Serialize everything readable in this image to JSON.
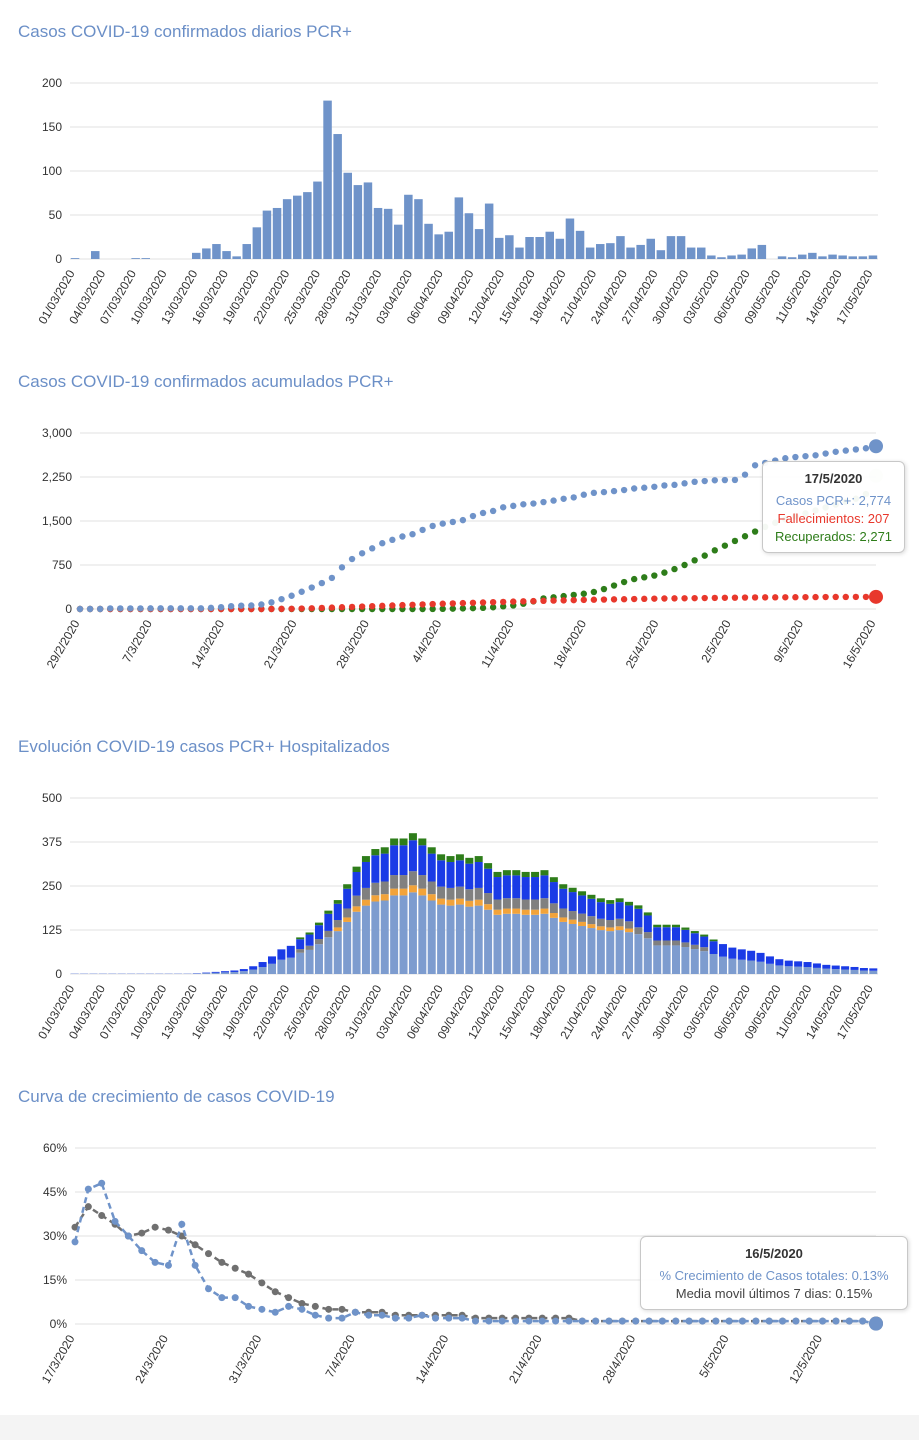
{
  "chart_data": [
    {
      "type": "bar",
      "title": "Casos COVID-19 confirmados diarios  PCR+",
      "xlabel": "",
      "ylabel": "",
      "ylim": [
        0,
        200
      ],
      "yticks": [
        "0",
        "50",
        "100",
        "150",
        "200"
      ],
      "color": "#6f93c9",
      "tick_labels": [
        "01/03/2020",
        "04/03/2020",
        "07/03/2020",
        "10/03/2020",
        "13/03/2020",
        "16/03/2020",
        "19/03/2020",
        "22/03/2020",
        "25/03/2020",
        "28/03/2020",
        "31/03/2020",
        "03/04/2020",
        "06/04/2020",
        "09/04/2020",
        "12/04/2020",
        "15/04/2020",
        "18/04/2020",
        "21/04/2020",
        "24/04/2020",
        "27/04/2020",
        "30/04/2020",
        "03/05/2020",
        "06/05/2020",
        "09/05/2020",
        "11/05/2020",
        "14/05/2020",
        "17/05/2020"
      ],
      "values": [
        1,
        0,
        9,
        0,
        0,
        0,
        1,
        1,
        0,
        0,
        0,
        0,
        7,
        12,
        17,
        9,
        3,
        17,
        36,
        55,
        58,
        68,
        72,
        76,
        88,
        180,
        142,
        98,
        84,
        87,
        58,
        57,
        39,
        73,
        68,
        40,
        28,
        31,
        70,
        52,
        34,
        63,
        24,
        27,
        13,
        25,
        25,
        31,
        23,
        46,
        32,
        13,
        17,
        18,
        26,
        13,
        16,
        23,
        10,
        26,
        26,
        13,
        13,
        4,
        2,
        4,
        5,
        12,
        16,
        0,
        3,
        2,
        5,
        7,
        3,
        5,
        4,
        3,
        3,
        4
      ]
    },
    {
      "type": "line",
      "title": "Casos COVID-19 confirmados acumulados PCR+",
      "xlabel": "",
      "ylabel": "",
      "ylim": [
        0,
        3000
      ],
      "yticks": [
        "0",
        "750",
        "1,500",
        "2,250",
        "3,000"
      ],
      "tick_labels": [
        "29/2/2020",
        "7/3/2020",
        "14/3/2020",
        "21/3/2020",
        "28/3/2020",
        "4/4/2020",
        "11/4/2020",
        "18/4/2020",
        "25/4/2020",
        "2/5/2020",
        "9/5/2020",
        "16/5/2020"
      ],
      "series": [
        {
          "name": "Casos PCR+",
          "color": "#6f93c9",
          "values": [
            0,
            1,
            1,
            10,
            10,
            10,
            10,
            11,
            12,
            12,
            12,
            12,
            12,
            19,
            31,
            48,
            57,
            60,
            77,
            113,
            168,
            226,
            294,
            366,
            442,
            530,
            710,
            852,
            950,
            1034,
            1121,
            1179,
            1236,
            1275,
            1348,
            1416,
            1456,
            1484,
            1515,
            1585,
            1637,
            1671,
            1734,
            1758,
            1785,
            1798,
            1823,
            1848,
            1879,
            1902,
            1948,
            1980,
            1993,
            2010,
            2028,
            2054,
            2067,
            2083,
            2106,
            2116,
            2142,
            2168,
            2181,
            2194,
            2198,
            2200,
            2290,
            2450,
            2490,
            2530,
            2570,
            2590,
            2605,
            2620,
            2650,
            2680,
            2700,
            2720,
            2740,
            2774
          ]
        },
        {
          "name": "Fallecimientos",
          "color": "#e8382c",
          "values": [
            0,
            0,
            0,
            0,
            0,
            0,
            0,
            0,
            0,
            0,
            0,
            0,
            0,
            0,
            0,
            0,
            0,
            0,
            0,
            1,
            2,
            4,
            8,
            12,
            18,
            24,
            30,
            36,
            42,
            48,
            54,
            60,
            66,
            72,
            78,
            84,
            90,
            95,
            100,
            106,
            111,
            116,
            121,
            126,
            131,
            135,
            139,
            143,
            147,
            151,
            155,
            158,
            161,
            164,
            167,
            170,
            173,
            176,
            179,
            181,
            183,
            185,
            187,
            189,
            191,
            193,
            195,
            197,
            198,
            199,
            200,
            201,
            202,
            203,
            204,
            205,
            205,
            206,
            206,
            207
          ]
        },
        {
          "name": "Recuperados",
          "color": "#2e7d1a",
          "values": [
            0,
            0,
            0,
            0,
            0,
            0,
            0,
            0,
            0,
            0,
            0,
            0,
            0,
            0,
            0,
            0,
            0,
            0,
            0,
            0,
            0,
            0,
            0,
            0,
            0,
            0,
            0,
            0,
            0,
            0,
            0,
            0,
            0,
            0,
            0,
            1,
            3,
            6,
            10,
            15,
            20,
            30,
            45,
            60,
            90,
            130,
            180,
            200,
            220,
            240,
            260,
            290,
            340,
            400,
            460,
            510,
            540,
            570,
            620,
            680,
            750,
            830,
            910,
            1000,
            1080,
            1160,
            1240,
            1320,
            1400,
            1470,
            1530,
            1580,
            1630,
            1680,
            1730,
            1780,
            1830,
            1880,
            1960,
            2271
          ]
        }
      ],
      "tooltip": {
        "date": "17/5/2020",
        "lines": [
          {
            "text": "Casos PCR+: 2,774",
            "color": "#6f93c9"
          },
          {
            "text": "Fallecimientos: 207",
            "color": "#e8382c"
          },
          {
            "text": "Recuperados: 2,271",
            "color": "#2e7d1a"
          }
        ]
      }
    },
    {
      "type": "bar",
      "stacked": true,
      "title": "Evolución COVID-19 casos PCR+ Hospitalizados",
      "xlabel": "",
      "ylabel": "",
      "ylim": [
        0,
        500
      ],
      "yticks": [
        "0",
        "125",
        "250",
        "375",
        "500"
      ],
      "tick_labels": [
        "01/03/2020",
        "04/03/2020",
        "07/03/2020",
        "10/03/2020",
        "13/03/2020",
        "16/03/2020",
        "19/03/2020",
        "22/03/2020",
        "25/03/2020",
        "28/03/2020",
        "31/03/2020",
        "03/04/2020",
        "06/04/2020",
        "09/04/2020",
        "12/04/2020",
        "15/04/2020",
        "18/04/2020",
        "21/04/2020",
        "24/04/2020",
        "27/04/2020",
        "30/04/2020",
        "03/05/2020",
        "06/05/2020",
        "09/05/2020",
        "11/05/2020",
        "14/05/2020",
        "17/05/2020"
      ],
      "colors": [
        "#7d9ccf",
        "#f2a33a",
        "#808080",
        "#1a3be6",
        "#2e7d1a"
      ],
      "totals": [
        1,
        1,
        1,
        1,
        1,
        1,
        1,
        1,
        1,
        1,
        1,
        1,
        1,
        2,
        4,
        6,
        8,
        10,
        14,
        22,
        34,
        50,
        70,
        80,
        104,
        118,
        146,
        180,
        210,
        255,
        305,
        335,
        355,
        360,
        385,
        385,
        400,
        385,
        360,
        340,
        335,
        340,
        330,
        335,
        315,
        290,
        295,
        295,
        290,
        290,
        295,
        275,
        255,
        245,
        235,
        225,
        215,
        210,
        215,
        205,
        195,
        175,
        140,
        140,
        140,
        132,
        122,
        112,
        98,
        85,
        75,
        70,
        66,
        60,
        50,
        42,
        38,
        36,
        34,
        30,
        26,
        24,
        22,
        20,
        17,
        16
      ]
    }
  ],
  "growth_chart": {
    "type": "line",
    "title": "Curva de crecimiento de casos COVID-19",
    "xlabel": "",
    "ylabel": "",
    "ylim": [
      0,
      60
    ],
    "yticks": [
      "0%",
      "15%",
      "30%",
      "45%",
      "60%"
    ],
    "tick_labels": [
      "17/3/2020",
      "24/3/2020",
      "31/3/2020",
      "7/4/2020",
      "14/4/2020",
      "21/4/2020",
      "28/4/2020",
      "5/5/2020",
      "12/5/2020"
    ],
    "series": [
      {
        "name": "% Crecimiento de Casos totales",
        "color": "#6f93c9",
        "values": [
          28,
          46,
          48,
          35,
          30,
          25,
          21,
          20,
          34,
          20,
          12,
          9,
          9,
          6,
          5,
          4,
          6,
          5,
          3,
          2,
          2,
          4,
          3,
          3,
          2,
          2,
          3,
          2,
          2,
          2,
          1,
          1,
          1,
          1,
          1,
          1,
          1,
          1,
          1,
          1,
          1,
          1,
          1,
          1,
          1,
          1,
          1,
          1,
          1,
          1,
          1,
          1,
          1,
          1,
          1,
          1,
          1,
          1,
          1,
          1,
          0.13
        ]
      },
      {
        "name": "Media movil últimos 7 dias",
        "color": "#707070",
        "values": [
          33,
          40,
          37,
          34,
          30,
          31,
          33,
          32,
          30,
          27,
          24,
          21,
          19,
          17,
          14,
          11,
          9,
          7,
          6,
          5,
          5,
          4,
          4,
          4,
          3,
          3,
          3,
          3,
          3,
          3,
          2,
          2,
          2,
          2,
          2,
          2,
          2,
          2,
          1,
          1,
          1,
          1,
          1,
          1,
          1,
          1,
          1,
          1,
          1,
          1,
          1,
          1,
          1,
          1,
          1,
          1,
          1,
          1,
          1,
          1,
          0.15
        ]
      }
    ],
    "tooltip": {
      "date": "16/5/2020",
      "lines": [
        {
          "text": "% Crecimiento de Casos totales: 0.13%",
          "color": "#6f93c9"
        },
        {
          "text": "Media movil últimos 7 dias: 0.15%",
          "color": "#444444"
        }
      ]
    }
  }
}
